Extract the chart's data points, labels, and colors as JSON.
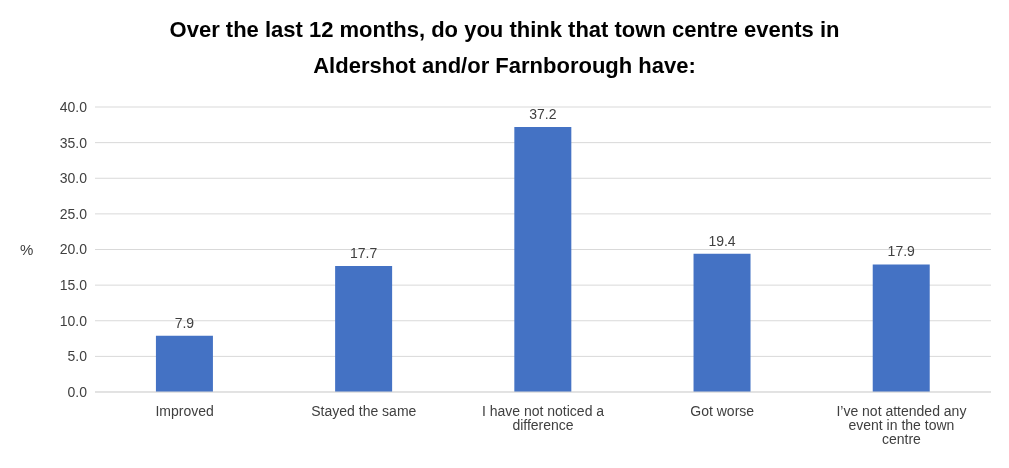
{
  "chart_data": {
    "type": "bar",
    "title": "Over the last 12 months, do you think that town centre events in Aldershot and/or Farnborough have:",
    "ylabel": "%",
    "categories": [
      "Improved",
      "Stayed the same",
      "I have not noticed a difference",
      "Got worse",
      "I’ve not attended any event in the town centre"
    ],
    "values": [
      7.9,
      17.7,
      37.2,
      19.4,
      17.9
    ],
    "color": "#4472c4",
    "ylim": [
      0,
      40
    ],
    "yticks": [
      {
        "value": 0,
        "label": "0.0"
      },
      {
        "value": 5,
        "label": "5.0"
      },
      {
        "value": 10,
        "label": "10.0"
      },
      {
        "value": 15,
        "label": "15.0"
      },
      {
        "value": 20,
        "label": "20.0"
      },
      {
        "value": 25,
        "label": "25.0"
      },
      {
        "value": 30,
        "label": "30.0"
      },
      {
        "value": 35,
        "label": "35.0"
      },
      {
        "value": 40,
        "label": "40.0"
      }
    ],
    "grid": "y",
    "data_labels": true
  }
}
